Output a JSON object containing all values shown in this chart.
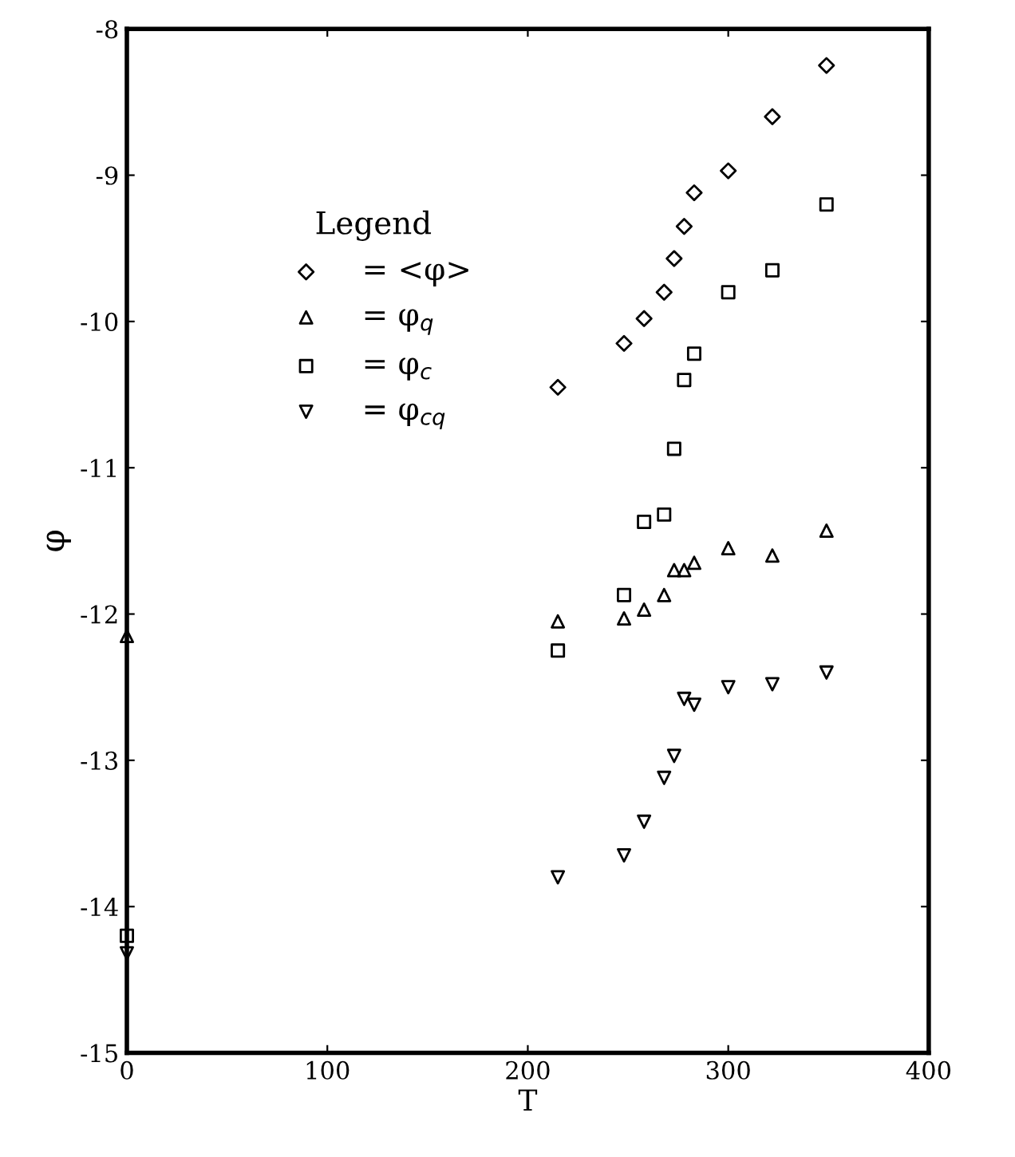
{
  "chart_data": {
    "type": "scatter",
    "xlabel": "T",
    "ylabel": "φ",
    "legend_title": "Legend",
    "xlim": [
      0,
      400
    ],
    "ylim": [
      -15,
      -8
    ],
    "xticks": [
      0,
      100,
      200,
      300,
      400
    ],
    "yticks": [
      -15,
      -14,
      -13,
      -12,
      -11,
      -10,
      -9,
      -8
    ],
    "grid": false,
    "legend": "top left",
    "series": [
      {
        "name": "= <φ>",
        "color": "#000000",
        "marker": "diamond",
        "x": [
          215,
          248,
          258,
          268,
          273,
          278,
          283,
          300,
          322,
          349
        ],
        "values": [
          -10.45,
          -10.15,
          -9.98,
          -9.8,
          -9.57,
          -9.35,
          -9.12,
          -8.97,
          -8.6,
          -8.25
        ]
      },
      {
        "name": "= φ$_{q}$",
        "color": "#000000",
        "marker": "triangle",
        "x": [
          0,
          215,
          248,
          258,
          268,
          273,
          278,
          283,
          300,
          322,
          349
        ],
        "values": [
          -12.15,
          -12.05,
          -12.03,
          -11.97,
          -11.87,
          -11.7,
          -11.7,
          -11.65,
          -11.55,
          -11.6,
          -11.43
        ]
      },
      {
        "name": "= φ$_{c}$",
        "color": "#000000",
        "marker": "square",
        "x": [
          0,
          215,
          248,
          258,
          268,
          273,
          278,
          283,
          300,
          322,
          349
        ],
        "values": [
          -14.2,
          -12.25,
          -11.87,
          -11.37,
          -11.32,
          -10.87,
          -10.4,
          -10.22,
          -9.8,
          -9.65,
          -9.2
        ]
      },
      {
        "name": "= φ$_{cq}$",
        "color": "#000000",
        "marker": "triangle_down",
        "x": [
          0,
          215,
          248,
          258,
          268,
          273,
          278,
          283,
          300,
          322,
          349
        ],
        "values": [
          -14.32,
          -13.8,
          -13.65,
          -13.42,
          -13.12,
          -12.97,
          -12.58,
          -12.62,
          -12.5,
          -12.48,
          -12.4
        ]
      }
    ]
  }
}
